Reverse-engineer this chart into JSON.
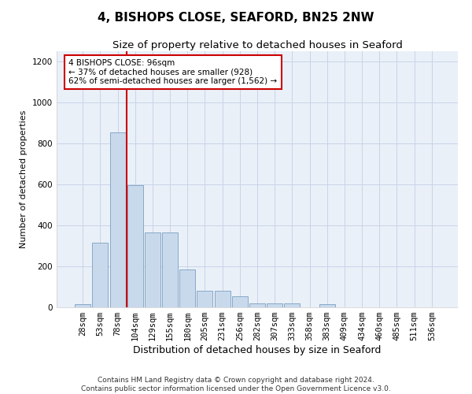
{
  "title": "4, BISHOPS CLOSE, SEAFORD, BN25 2NW",
  "subtitle": "Size of property relative to detached houses in Seaford",
  "xlabel": "Distribution of detached houses by size in Seaford",
  "ylabel": "Number of detached properties",
  "categories": [
    "28sqm",
    "53sqm",
    "78sqm",
    "104sqm",
    "129sqm",
    "155sqm",
    "180sqm",
    "205sqm",
    "231sqm",
    "256sqm",
    "282sqm",
    "307sqm",
    "333sqm",
    "358sqm",
    "383sqm",
    "409sqm",
    "434sqm",
    "460sqm",
    "485sqm",
    "511sqm",
    "536sqm"
  ],
  "values": [
    15,
    315,
    855,
    595,
    365,
    365,
    185,
    80,
    80,
    55,
    20,
    20,
    20,
    0,
    15,
    0,
    0,
    0,
    0,
    0,
    0
  ],
  "bar_color": "#c9d9ec",
  "bar_edge_color": "#7a9fc0",
  "vline_x_index": 2.5,
  "vline_color": "#cc0000",
  "annotation_text": "4 BISHOPS CLOSE: 96sqm\n← 37% of detached houses are smaller (928)\n62% of semi-detached houses are larger (1,562) →",
  "annotation_box_color": "#ffffff",
  "annotation_box_edge": "#cc0000",
  "ylim": [
    0,
    1250
  ],
  "yticks": [
    0,
    200,
    400,
    600,
    800,
    1000,
    1200
  ],
  "grid_color": "#c8d4e8",
  "background_color": "#eaf0f8",
  "footer": "Contains HM Land Registry data © Crown copyright and database right 2024.\nContains public sector information licensed under the Open Government Licence v3.0.",
  "title_fontsize": 11,
  "subtitle_fontsize": 9.5,
  "xlabel_fontsize": 9,
  "ylabel_fontsize": 8,
  "tick_fontsize": 7.5,
  "footer_fontsize": 6.5,
  "annotation_fontsize": 7.5
}
